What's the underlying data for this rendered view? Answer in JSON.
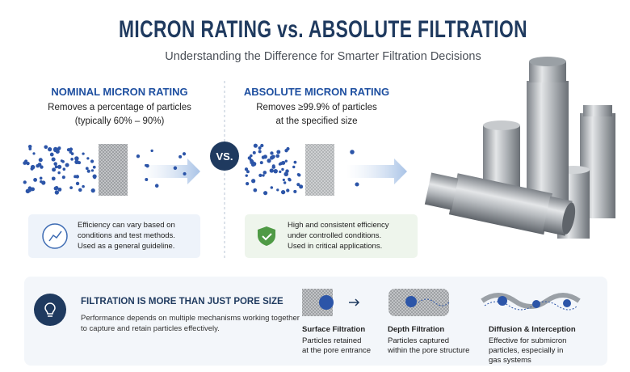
{
  "header": {
    "title": "MICRON RATING vs. ABSOLUTE FILTRATION",
    "subtitle": "Understanding the Difference for Smarter Filtration Decisions"
  },
  "nominal": {
    "title": "NOMINAL MICRON RATING",
    "description": [
      "Removes a percentage of particles",
      "(typically 60% – 90%)"
    ],
    "note": [
      "Efficiency can vary based on",
      "conditions and test methods.",
      "Used as a general guideline."
    ]
  },
  "versus": "VS.",
  "absolute": {
    "title": "ABSOLUTE MICRON RATING",
    "description": [
      "Removes ≥99.9% of particles",
      "at the specified size"
    ],
    "note": [
      "High and consistent efficiency",
      "under controlled conditions.",
      "Used in critical applications."
    ]
  },
  "footer": {
    "title": "FILTRATION IS MORE THAN JUST PORE SIZE",
    "description": [
      "Performance depends on multiple mechanisms working together",
      "to capture and retain particles effectively."
    ],
    "mechanisms": [
      {
        "name": "Surface Filtration",
        "description": [
          "Particles retained",
          "at the pore entrance"
        ]
      },
      {
        "name": "Depth Filtration",
        "description": [
          "Particles captured",
          "within the pore structure"
        ]
      },
      {
        "name": "Diffusion & Interception",
        "description": [
          "Effective for submicron",
          "particles, especially in",
          "gas systems"
        ]
      }
    ]
  }
}
